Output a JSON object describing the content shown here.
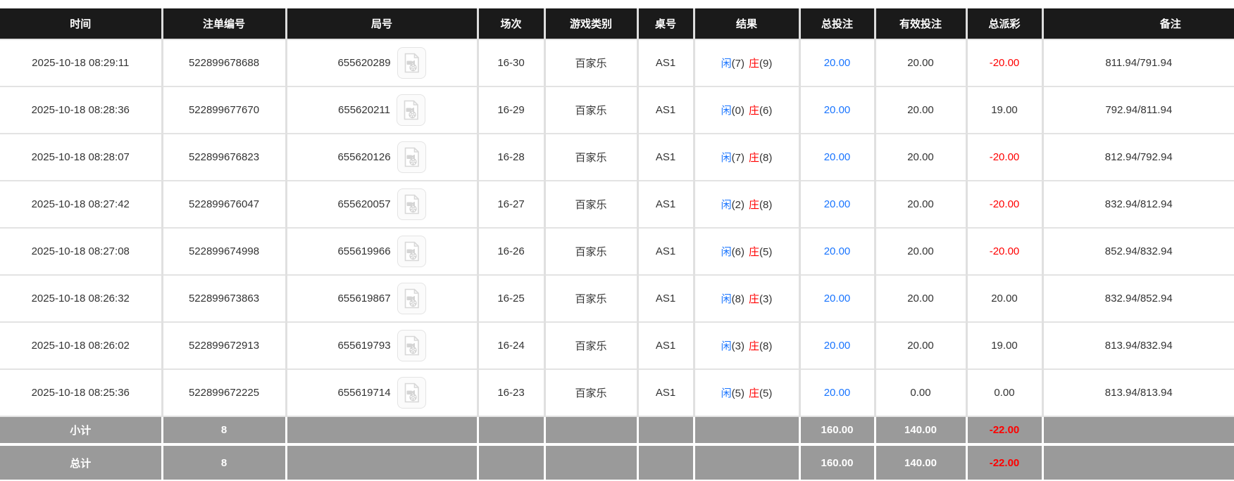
{
  "table": {
    "columns": [
      {
        "key": "time",
        "label": "时间"
      },
      {
        "key": "bet_id",
        "label": "注单编号"
      },
      {
        "key": "round_id",
        "label": "局号"
      },
      {
        "key": "session",
        "label": "场次"
      },
      {
        "key": "game_type",
        "label": "游戏类别"
      },
      {
        "key": "table_id",
        "label": "桌号"
      },
      {
        "key": "result",
        "label": "结果"
      },
      {
        "key": "total_bet",
        "label": "总投注"
      },
      {
        "key": "valid_bet",
        "label": "有效投注"
      },
      {
        "key": "payout",
        "label": "总派彩"
      },
      {
        "key": "remark",
        "label": "备注"
      }
    ],
    "result_labels": {
      "player": "闲",
      "banker": "庄"
    },
    "round_icon": "video-file-icon",
    "rows": [
      {
        "time": "2025-10-18 08:29:11",
        "bet_id": "522899678688",
        "round_id": "655620289",
        "session": "16-30",
        "game_type": "百家乐",
        "table_id": "AS1",
        "player": "(7)",
        "banker": "(9)",
        "total_bet": "20.00",
        "valid_bet": "20.00",
        "payout": "-20.00",
        "remark": "811.94/791.94"
      },
      {
        "time": "2025-10-18 08:28:36",
        "bet_id": "522899677670",
        "round_id": "655620211",
        "session": "16-29",
        "game_type": "百家乐",
        "table_id": "AS1",
        "player": "(0)",
        "banker": "(6)",
        "total_bet": "20.00",
        "valid_bet": "20.00",
        "payout": "19.00",
        "remark": "792.94/811.94"
      },
      {
        "time": "2025-10-18 08:28:07",
        "bet_id": "522899676823",
        "round_id": "655620126",
        "session": "16-28",
        "game_type": "百家乐",
        "table_id": "AS1",
        "player": "(7)",
        "banker": "(8)",
        "total_bet": "20.00",
        "valid_bet": "20.00",
        "payout": "-20.00",
        "remark": "812.94/792.94"
      },
      {
        "time": "2025-10-18 08:27:42",
        "bet_id": "522899676047",
        "round_id": "655620057",
        "session": "16-27",
        "game_type": "百家乐",
        "table_id": "AS1",
        "player": "(2)",
        "banker": "(8)",
        "total_bet": "20.00",
        "valid_bet": "20.00",
        "payout": "-20.00",
        "remark": "832.94/812.94"
      },
      {
        "time": "2025-10-18 08:27:08",
        "bet_id": "522899674998",
        "round_id": "655619966",
        "session": "16-26",
        "game_type": "百家乐",
        "table_id": "AS1",
        "player": "(6)",
        "banker": "(5)",
        "total_bet": "20.00",
        "valid_bet": "20.00",
        "payout": "-20.00",
        "remark": "852.94/832.94"
      },
      {
        "time": "2025-10-18 08:26:32",
        "bet_id": "522899673863",
        "round_id": "655619867",
        "session": "16-25",
        "game_type": "百家乐",
        "table_id": "AS1",
        "player": "(8)",
        "banker": "(3)",
        "total_bet": "20.00",
        "valid_bet": "20.00",
        "payout": "20.00",
        "remark": "832.94/852.94"
      },
      {
        "time": "2025-10-18 08:26:02",
        "bet_id": "522899672913",
        "round_id": "655619793",
        "session": "16-24",
        "game_type": "百家乐",
        "table_id": "AS1",
        "player": "(3)",
        "banker": "(8)",
        "total_bet": "20.00",
        "valid_bet": "20.00",
        "payout": "19.00",
        "remark": "813.94/832.94"
      },
      {
        "time": "2025-10-18 08:25:36",
        "bet_id": "522899672225",
        "round_id": "655619714",
        "session": "16-23",
        "game_type": "百家乐",
        "table_id": "AS1",
        "player": "(5)",
        "banker": "(5)",
        "total_bet": "20.00",
        "valid_bet": "0.00",
        "payout": "0.00",
        "remark": "813.94/813.94"
      }
    ],
    "footer": [
      {
        "label": "小计",
        "count": "8",
        "total_bet": "160.00",
        "valid_bet": "140.00",
        "payout": "-22.00"
      },
      {
        "label": "总计",
        "count": "8",
        "total_bet": "160.00",
        "valid_bet": "140.00",
        "payout": "-22.00"
      }
    ]
  },
  "colors": {
    "header_bg": "#1a1a1a",
    "footer_bg": "#9a9a9a",
    "accent_blue": "#1a75ff",
    "negative_red": "#ff0000"
  }
}
